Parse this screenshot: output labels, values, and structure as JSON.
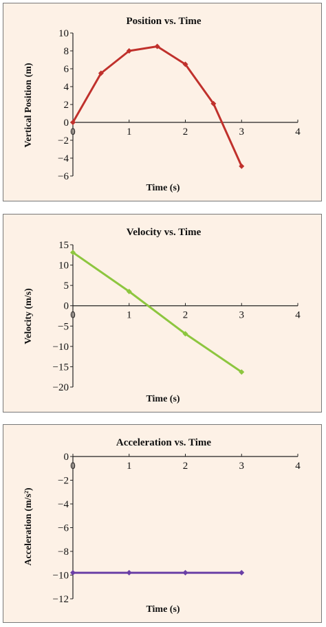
{
  "chart_data": [
    {
      "type": "line",
      "title": "Position vs. Time",
      "xlabel": "Time (s)",
      "ylabel": "Vertical Position (m)",
      "xlim": [
        0,
        4
      ],
      "ylim": [
        -6,
        10
      ],
      "xticks": [
        0,
        1,
        2,
        3,
        4
      ],
      "yticks": [
        10,
        8,
        6,
        4,
        2,
        0,
        -2,
        -4,
        -6
      ],
      "color": "#c0312c",
      "series": [
        {
          "x": [
            0,
            0.5,
            1,
            1.5,
            2,
            2.5,
            3
          ],
          "values": [
            0.0,
            5.5,
            8.0,
            8.5,
            6.5,
            2.1,
            -4.9
          ]
        }
      ]
    },
    {
      "type": "line",
      "title": "Velocity vs. Time",
      "xlabel": "Time (s)",
      "ylabel": "Velocity (m/s)",
      "xlim": [
        0,
        4
      ],
      "ylim": [
        -20,
        15
      ],
      "xticks": [
        0,
        1,
        2,
        3,
        4
      ],
      "yticks": [
        15,
        10,
        5,
        0,
        -5,
        -10,
        -15,
        -20
      ],
      "color": "#8dc63f",
      "series": [
        {
          "x": [
            0,
            1,
            2,
            3
          ],
          "values": [
            13.1,
            3.5,
            -6.9,
            -16.3
          ]
        }
      ]
    },
    {
      "type": "line",
      "title": "Acceleration vs. Time",
      "xlabel": "Time (s)",
      "ylabel": "Acceleration (m/s²)",
      "xlim": [
        0,
        4
      ],
      "ylim": [
        -12,
        0
      ],
      "xticks": [
        0,
        1,
        2,
        3,
        4
      ],
      "yticks": [
        0,
        -2,
        -4,
        -6,
        -8,
        -10,
        -12
      ],
      "color": "#6a3fa6",
      "series": [
        {
          "x": [
            0,
            1,
            2,
            3
          ],
          "values": [
            -9.8,
            -9.8,
            -9.8,
            -9.8
          ]
        }
      ]
    }
  ]
}
